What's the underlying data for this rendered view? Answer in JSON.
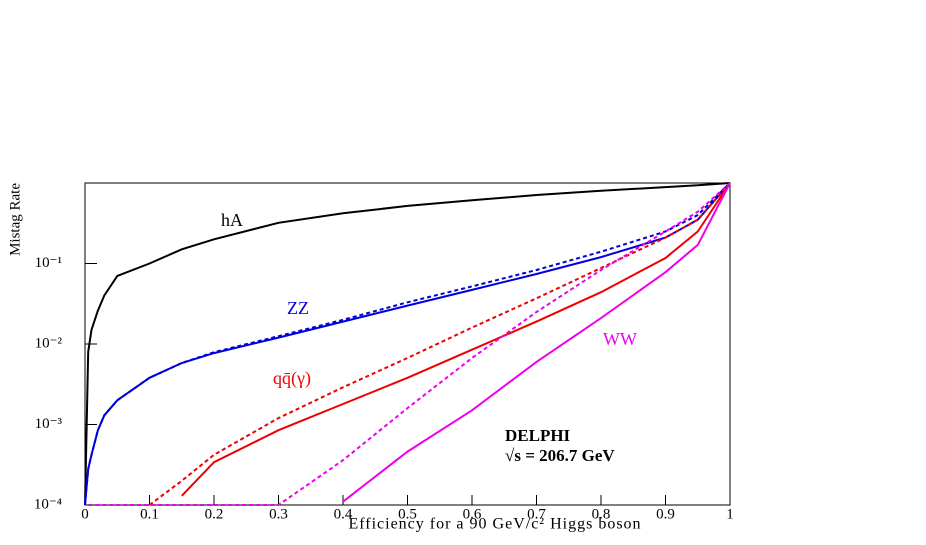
{
  "chart_data": {
    "type": "line",
    "xlabel": "Efficiency for a 90 GeV/c² Higgs boson",
    "ylabel": "Mistag Rate",
    "log_y": true,
    "x": [
      0,
      0.005,
      0.01,
      0.02,
      0.03,
      0.05,
      0.1,
      0.15,
      0.2,
      0.3,
      0.4,
      0.5,
      0.6,
      0.7,
      0.8,
      0.9,
      0.95,
      1
    ],
    "series": [
      {
        "name": "hA",
        "color": "#000000",
        "dashed": false,
        "values": [
          0.0001,
          0.008,
          0.015,
          0.026,
          0.04,
          0.07,
          0.1,
          0.15,
          0.2,
          0.32,
          0.42,
          0.52,
          0.61,
          0.71,
          0.8,
          0.89,
          0.94,
          1
        ]
      },
      {
        "name": "ZZ",
        "color": "#0000dd",
        "dashed": false,
        "values": [
          0.0001,
          0.00028,
          0.00042,
          0.00085,
          0.0013,
          0.002,
          0.0038,
          0.0058,
          0.0077,
          0.012,
          0.019,
          0.03,
          0.047,
          0.074,
          0.12,
          0.21,
          0.35,
          1
        ]
      },
      {
        "color": "#0000dd",
        "dashed": true,
        "values": [
          0.0001,
          0.00028,
          0.00042,
          0.00085,
          0.0013,
          0.002,
          0.0038,
          0.0058,
          0.0079,
          0.0125,
          0.02,
          0.033,
          0.052,
          0.083,
          0.14,
          0.25,
          0.4,
          1
        ]
      },
      {
        "name": "qq̄(γ)",
        "color": "#ee0000",
        "dashed": false,
        "values": [
          null,
          null,
          null,
          null,
          null,
          null,
          null,
          0.00013,
          0.00034,
          0.00085,
          0.0018,
          0.0038,
          0.0085,
          0.019,
          0.044,
          0.117,
          0.25,
          1
        ]
      },
      {
        "color": "#ee0000",
        "dashed": true,
        "values": [
          null,
          null,
          null,
          null,
          null,
          null,
          0.0001,
          0.0002,
          0.00042,
          0.0012,
          0.0029,
          0.0067,
          0.016,
          0.037,
          0.088,
          0.21,
          0.35,
          1
        ]
      },
      {
        "name": "WW",
        "color": "#ee00ee",
        "dashed": false,
        "values": [
          null,
          null,
          null,
          null,
          null,
          null,
          null,
          null,
          null,
          null,
          0.00011,
          0.00046,
          0.0015,
          0.006,
          0.021,
          0.078,
          0.17,
          1
        ]
      },
      {
        "color": "#ee00ee",
        "dashed": true,
        "values": [
          null,
          0.0001,
          0.0001,
          0.0001,
          0.0001,
          0.0001,
          0.0001,
          0.0001,
          0.0001,
          0.0001,
          0.00036,
          0.0016,
          0.0067,
          0.025,
          0.083,
          0.25,
          0.44,
          1
        ]
      }
    ],
    "annotations": [
      "DELPHI",
      "√s = 206.7 GeV"
    ],
    "xlim": [
      0,
      1
    ],
    "xticks": [
      0,
      0.1,
      0.2,
      0.3,
      0.4,
      0.5,
      0.6,
      0.7,
      0.8,
      0.9,
      1
    ],
    "ylim": [
      0.0001,
      1
    ],
    "yticks": [
      {
        "value": 0.1,
        "label": "10⁻¹"
      },
      {
        "value": 0.01,
        "label": "10⁻²"
      },
      {
        "value": 0.001,
        "label": "10⁻³"
      },
      {
        "value": 0.0001,
        "label": "10⁻⁴"
      }
    ],
    "grid": false
  }
}
